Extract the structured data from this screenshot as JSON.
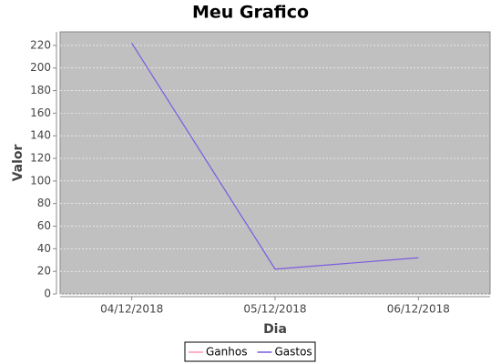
{
  "chart_data": {
    "type": "line",
    "title": "Meu Grafico",
    "x_label": "Dia",
    "y_label": "Valor",
    "categories": [
      "04/12/2018",
      "05/12/2018",
      "06/12/2018"
    ],
    "series": [
      {
        "name": "Ganhos",
        "color": "#ff99b0",
        "values": [
          null,
          null,
          null
        ]
      },
      {
        "name": "Gastos",
        "color": "#7a5ae0",
        "values": [
          222,
          22,
          32
        ]
      }
    ],
    "ylim": [
      0,
      232
    ],
    "yticks": [
      0,
      20,
      40,
      60,
      80,
      100,
      120,
      140,
      160,
      180,
      200,
      220
    ],
    "grid": true,
    "legend": "bottom"
  }
}
